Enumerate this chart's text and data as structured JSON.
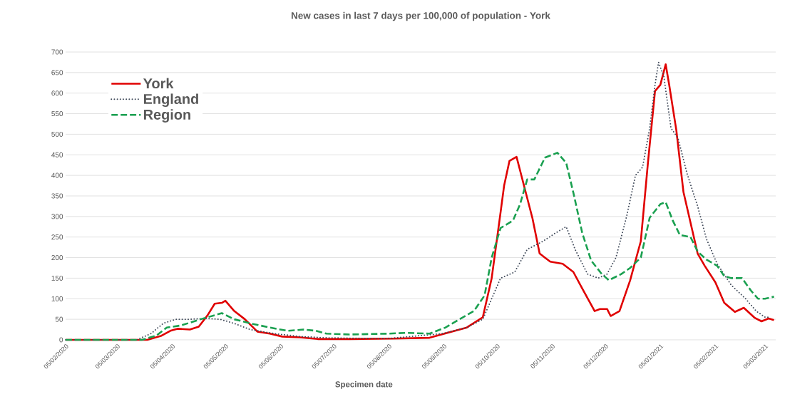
{
  "chart_data": {
    "type": "line",
    "title": "New cases in last 7 days per 100,000 of population - York",
    "xlabel": "Specimen date",
    "xlim": [
      "2020-02-05",
      "2021-03-11"
    ],
    "ylim": [
      0,
      700
    ],
    "xticks": [
      {
        "value": "2020-02-05",
        "label": "05/02/2020"
      },
      {
        "value": "2020-03-05",
        "label": "05/03/2020"
      },
      {
        "value": "2020-04-05",
        "label": "05/04/2020"
      },
      {
        "value": "2020-05-05",
        "label": "05/05/2020"
      },
      {
        "value": "2020-06-05",
        "label": "05/06/2020"
      },
      {
        "value": "2020-07-05",
        "label": "05/07/2020"
      },
      {
        "value": "2020-08-05",
        "label": "05/08/2020"
      },
      {
        "value": "2020-09-05",
        "label": "05/09/2020"
      },
      {
        "value": "2020-10-05",
        "label": "05/10/2020"
      },
      {
        "value": "2020-11-05",
        "label": "05/11/2020"
      },
      {
        "value": "2020-12-05",
        "label": "05/12/2020"
      },
      {
        "value": "2021-01-05",
        "label": "05/01/2021"
      },
      {
        "value": "2021-02-05",
        "label": "05/02/2021"
      },
      {
        "value": "2021-03-05",
        "label": "05/03/2021"
      }
    ],
    "yticks": [
      0,
      50,
      100,
      150,
      200,
      250,
      300,
      350,
      400,
      450,
      500,
      550,
      600,
      650,
      700
    ],
    "grid": "y",
    "legend": "top left",
    "series": [
      {
        "name": "York",
        "color": "#e00000",
        "line_style": "solid",
        "x": [
          "2020-02-05",
          "2020-03-22",
          "2020-03-30",
          "2020-04-04",
          "2020-04-08",
          "2020-04-15",
          "2020-04-20",
          "2020-04-25",
          "2020-04-29",
          "2020-05-03",
          "2020-05-05",
          "2020-05-10",
          "2020-05-16",
          "2020-05-23",
          "2020-05-30",
          "2020-06-06",
          "2020-06-16",
          "2020-06-26",
          "2020-07-14",
          "2020-08-07",
          "2020-08-28",
          "2020-09-18",
          "2020-09-27",
          "2020-10-02",
          "2020-10-07",
          "2020-10-09",
          "2020-10-12",
          "2020-10-16",
          "2020-10-19",
          "2020-10-25",
          "2020-10-29",
          "2020-11-04",
          "2020-11-11",
          "2020-11-17",
          "2020-11-22",
          "2020-11-29",
          "2020-12-02",
          "2020-12-06",
          "2020-12-08",
          "2020-12-13",
          "2020-12-19",
          "2020-12-25",
          "2020-12-29",
          "2021-01-02",
          "2021-01-05",
          "2021-01-08",
          "2021-01-10",
          "2021-01-14",
          "2021-01-18",
          "2021-01-22",
          "2021-01-26",
          "2021-01-30",
          "2021-02-05",
          "2021-02-10",
          "2021-02-16",
          "2021-02-21",
          "2021-02-27",
          "2021-03-03",
          "2021-03-07",
          "2021-03-10"
        ],
        "values": [
          0,
          0,
          10,
          22,
          27,
          25,
          32,
          60,
          88,
          90,
          95,
          70,
          50,
          20,
          15,
          8,
          6,
          2,
          2,
          3,
          5,
          30,
          55,
          150,
          310,
          375,
          435,
          445,
          395,
          295,
          210,
          190,
          185,
          165,
          125,
          70,
          75,
          75,
          58,
          70,
          145,
          240,
          430,
          605,
          620,
          670,
          620,
          510,
          360,
          285,
          210,
          180,
          140,
          90,
          68,
          78,
          54,
          45,
          52,
          48
        ]
      },
      {
        "name": "England",
        "color": "#404a5a",
        "line_style": "dotted",
        "x": [
          "2020-02-05",
          "2020-03-16",
          "2020-03-24",
          "2020-03-31",
          "2020-04-07",
          "2020-04-15",
          "2020-04-24",
          "2020-05-02",
          "2020-05-10",
          "2020-05-19",
          "2020-06-02",
          "2020-06-16",
          "2020-07-01",
          "2020-07-29",
          "2020-08-07",
          "2020-09-04",
          "2020-09-18",
          "2020-09-27",
          "2020-10-02",
          "2020-10-07",
          "2020-10-15",
          "2020-10-22",
          "2020-10-31",
          "2020-11-07",
          "2020-11-13",
          "2020-11-18",
          "2020-11-25",
          "2020-12-01",
          "2020-12-06",
          "2020-12-11",
          "2020-12-17",
          "2020-12-22",
          "2020-12-26",
          "2020-12-30",
          "2021-01-02",
          "2021-01-04",
          "2021-01-07",
          "2021-01-11",
          "2021-01-15",
          "2021-01-20",
          "2021-01-26",
          "2021-01-31",
          "2021-02-06",
          "2021-02-14",
          "2021-02-22",
          "2021-02-28",
          "2021-03-05",
          "2021-03-08"
        ],
        "values": [
          0,
          0,
          15,
          40,
          50,
          50,
          52,
          50,
          40,
          25,
          15,
          8,
          5,
          3,
          4,
          15,
          30,
          50,
          100,
          150,
          165,
          220,
          240,
          260,
          275,
          220,
          160,
          150,
          160,
          200,
          300,
          400,
          420,
          515,
          620,
          675,
          640,
          515,
          490,
          405,
          325,
          245,
          185,
          133,
          100,
          70,
          55,
          55
        ]
      },
      {
        "name": "Region",
        "color": "#1aa050",
        "line_style": "dashed",
        "x": [
          "2020-02-05",
          "2020-03-19",
          "2020-03-27",
          "2020-04-02",
          "2020-04-10",
          "2020-04-21",
          "2020-04-29",
          "2020-05-03",
          "2020-05-10",
          "2020-05-19",
          "2020-05-30",
          "2020-06-09",
          "2020-06-18",
          "2020-06-25",
          "2020-07-01",
          "2020-07-14",
          "2020-08-04",
          "2020-08-15",
          "2020-08-28",
          "2020-09-06",
          "2020-09-13",
          "2020-09-22",
          "2020-09-28",
          "2020-10-02",
          "2020-10-07",
          "2020-10-14",
          "2020-10-18",
          "2020-10-22",
          "2020-10-26",
          "2020-11-01",
          "2020-11-08",
          "2020-11-13",
          "2020-11-17",
          "2020-11-22",
          "2020-11-27",
          "2020-12-03",
          "2020-12-07",
          "2020-12-14",
          "2020-12-19",
          "2020-12-25",
          "2020-12-30",
          "2021-01-05",
          "2021-01-08",
          "2021-01-12",
          "2021-01-16",
          "2021-01-22",
          "2021-01-26",
          "2021-01-31",
          "2021-02-06",
          "2021-02-10",
          "2021-02-14",
          "2021-02-20",
          "2021-02-25",
          "2021-03-01",
          "2021-03-05",
          "2021-03-10"
        ],
        "values": [
          0,
          0,
          10,
          30,
          35,
          50,
          60,
          65,
          50,
          40,
          30,
          22,
          25,
          22,
          15,
          13,
          15,
          17,
          15,
          30,
          48,
          70,
          108,
          200,
          272,
          290,
          330,
          390,
          390,
          443,
          455,
          430,
          358,
          260,
          193,
          160,
          145,
          160,
          175,
          200,
          297,
          330,
          335,
          290,
          255,
          250,
          215,
          195,
          180,
          155,
          150,
          150,
          120,
          100,
          100,
          105
        ]
      }
    ]
  }
}
